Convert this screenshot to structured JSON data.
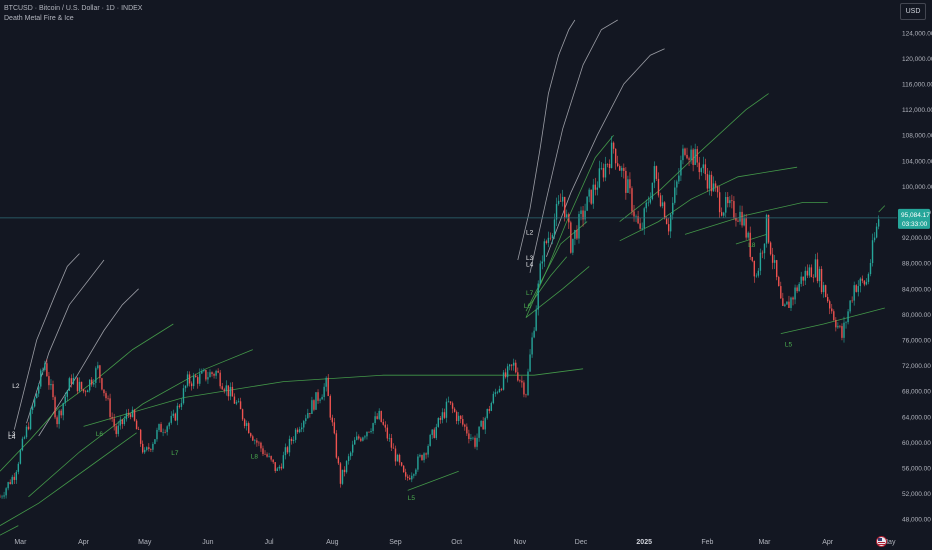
{
  "header": {
    "symbol_line": "BTCUSD · Bitcoin / U.S. Dollar · 1D · INDEX",
    "indicator_name": "Death Metal Fire & Ice"
  },
  "currency": "USD",
  "colors": {
    "background": "#131722",
    "up": "#26a69a",
    "down": "#ef5350",
    "axis_text": "#b2b5be",
    "green_line": "#4caf50",
    "white_line": "#c8cad0",
    "price_line": "#2e6b77",
    "price_badge": "#26a69a"
  },
  "chart_data": {
    "type": "candlestick",
    "title": "BTCUSD · Bitcoin / U.S. Dollar · 1D · INDEX",
    "interval": "1D",
    "x_range": [
      "2024-02-20",
      "2025-05-05"
    ],
    "ylim": [
      46000,
      126000
    ],
    "y_ticks": [
      "48,000.00",
      "52,000.00",
      "56,000.00",
      "60,000.00",
      "64,000.00",
      "68,000.00",
      "72,000.00",
      "76,000.00",
      "80,000.00",
      "84,000.00",
      "88,000.00",
      "92,000.00",
      "96,000.00",
      "100,000.00",
      "104,000.00",
      "108,000.00",
      "112,000.00",
      "116,000.00",
      "120,000.00",
      "124,000.00"
    ],
    "y_tick_values": [
      48000,
      52000,
      56000,
      60000,
      64000,
      68000,
      72000,
      76000,
      80000,
      84000,
      88000,
      92000,
      96000,
      100000,
      104000,
      108000,
      112000,
      116000,
      120000,
      124000
    ],
    "x_ticks": [
      {
        "label": "Mar",
        "date": "2024-03-01",
        "bold": false
      },
      {
        "label": "Apr",
        "date": "2024-04-01",
        "bold": false
      },
      {
        "label": "May",
        "date": "2024-05-01",
        "bold": false
      },
      {
        "label": "Jun",
        "date": "2024-06-01",
        "bold": false
      },
      {
        "label": "Jul",
        "date": "2024-07-01",
        "bold": false
      },
      {
        "label": "Aug",
        "date": "2024-08-01",
        "bold": false
      },
      {
        "label": "Sep",
        "date": "2024-09-01",
        "bold": false
      },
      {
        "label": "Oct",
        "date": "2024-10-01",
        "bold": false
      },
      {
        "label": "Nov",
        "date": "2024-11-01",
        "bold": false
      },
      {
        "label": "Dec",
        "date": "2024-12-01",
        "bold": false
      },
      {
        "label": "2025",
        "date": "2025-01-01",
        "bold": true
      },
      {
        "label": "Feb",
        "date": "2025-02-01",
        "bold": false
      },
      {
        "label": "Mar",
        "date": "2025-03-01",
        "bold": false
      },
      {
        "label": "Apr",
        "date": "2025-04-01",
        "bold": false
      },
      {
        "label": "May",
        "date": "2025-05-01",
        "bold": false
      }
    ],
    "price_path": [
      [
        "2024-02-20",
        51500
      ],
      [
        "2024-02-27",
        55000
      ],
      [
        "2024-03-05",
        63000
      ],
      [
        "2024-03-13",
        72500
      ],
      [
        "2024-03-19",
        63500
      ],
      [
        "2024-03-26",
        70000
      ],
      [
        "2024-04-01",
        68000
      ],
      [
        "2024-04-08",
        71500
      ],
      [
        "2024-04-17",
        61500
      ],
      [
        "2024-04-24",
        65000
      ],
      [
        "2024-05-01",
        58000
      ],
      [
        "2024-05-08",
        62000
      ],
      [
        "2024-05-15",
        63500
      ],
      [
        "2024-05-22",
        69500
      ],
      [
        "2024-06-05",
        71000
      ],
      [
        "2024-06-15",
        66000
      ],
      [
        "2024-06-24",
        60500
      ],
      [
        "2024-07-05",
        55500
      ],
      [
        "2024-07-15",
        62500
      ],
      [
        "2024-07-29",
        69000
      ],
      [
        "2024-08-05",
        54000
      ],
      [
        "2024-08-12",
        60000
      ],
      [
        "2024-08-24",
        64000
      ],
      [
        "2024-09-06",
        54000
      ],
      [
        "2024-09-15",
        58500
      ],
      [
        "2024-09-27",
        66000
      ],
      [
        "2024-10-10",
        60000
      ],
      [
        "2024-10-21",
        68500
      ],
      [
        "2024-10-29",
        72000
      ],
      [
        "2024-11-04",
        68000
      ],
      [
        "2024-11-12",
        89500
      ],
      [
        "2024-11-22",
        98500
      ],
      [
        "2024-11-26",
        91000
      ],
      [
        "2024-12-05",
        98000
      ],
      [
        "2024-12-17",
        106000
      ],
      [
        "2024-12-25",
        98500
      ],
      [
        "2024-12-30",
        92500
      ],
      [
        "2025-01-06",
        102000
      ],
      [
        "2025-01-13",
        94000
      ],
      [
        "2025-01-21",
        106500
      ],
      [
        "2025-01-31",
        102000
      ],
      [
        "2025-02-08",
        97000
      ],
      [
        "2025-02-18",
        95500
      ],
      [
        "2025-02-25",
        86000
      ],
      [
        "2025-03-02",
        94000
      ],
      [
        "2025-03-10",
        80000
      ],
      [
        "2025-03-20",
        86000
      ],
      [
        "2025-03-26",
        87500
      ],
      [
        "2025-04-08",
        76500
      ],
      [
        "2025-04-14",
        84500
      ],
      [
        "2025-04-20",
        85000
      ],
      [
        "2025-04-26",
        95084
      ]
    ],
    "last_price": "95,084.17",
    "countdown": "03:33:00",
    "series": [
      {
        "color": "white",
        "points": [
          [
            "2024-02-27",
            62000
          ],
          [
            "2024-03-09",
            76000
          ],
          [
            "2024-03-18",
            83000
          ],
          [
            "2024-03-24",
            87500
          ],
          [
            "2024-03-30",
            89500
          ]
        ]
      },
      {
        "color": "white",
        "points": [
          [
            "2024-03-04",
            63000
          ],
          [
            "2024-03-15",
            74000
          ],
          [
            "2024-03-25",
            81500
          ],
          [
            "2024-04-05",
            86000
          ],
          [
            "2024-04-11",
            88500
          ]
        ]
      },
      {
        "color": "white",
        "points": [
          [
            "2024-03-10",
            61000
          ],
          [
            "2024-03-28",
            70000
          ],
          [
            "2024-04-11",
            77500
          ],
          [
            "2024-04-20",
            81500
          ],
          [
            "2024-04-28",
            84000
          ]
        ]
      },
      {
        "color": "white",
        "points": [
          [
            "2024-10-31",
            88500
          ],
          [
            "2024-11-06",
            96500
          ],
          [
            "2024-11-11",
            106000
          ],
          [
            "2024-11-15",
            114500
          ],
          [
            "2024-11-20",
            120500
          ],
          [
            "2024-11-25",
            124500
          ],
          [
            "2024-11-28",
            126000
          ]
        ]
      },
      {
        "color": "white",
        "points": [
          [
            "2024-11-06",
            86500
          ],
          [
            "2024-11-14",
            98000
          ],
          [
            "2024-11-22",
            109000
          ],
          [
            "2024-12-02",
            119000
          ],
          [
            "2024-12-11",
            124500
          ],
          [
            "2024-12-19",
            126000
          ]
        ]
      },
      {
        "color": "white",
        "points": [
          [
            "2024-11-14",
            89000
          ],
          [
            "2024-11-26",
            99000
          ],
          [
            "2024-12-09",
            108000
          ],
          [
            "2024-12-22",
            116000
          ],
          [
            "2025-01-04",
            120500
          ],
          [
            "2025-01-11",
            121500
          ]
        ]
      },
      {
        "color": "green",
        "points": [
          [
            "2024-02-20",
            55500
          ],
          [
            "2024-03-06",
            60500
          ],
          [
            "2024-03-20",
            65500
          ],
          [
            "2024-04-06",
            69500
          ],
          [
            "2024-04-25",
            74500
          ],
          [
            "2024-05-15",
            78500
          ]
        ]
      },
      {
        "color": "green",
        "points": [
          [
            "2024-03-05",
            51500
          ],
          [
            "2024-03-30",
            58500
          ],
          [
            "2024-04-30",
            66000
          ],
          [
            "2024-05-31",
            71500
          ],
          [
            "2024-06-23",
            74500
          ]
        ]
      },
      {
        "color": "green",
        "points": [
          [
            "2024-02-20",
            47000
          ],
          [
            "2024-03-10",
            50500
          ],
          [
            "2024-04-03",
            56000
          ],
          [
            "2024-04-27",
            61500
          ]
        ]
      },
      {
        "color": "green",
        "points": [
          [
            "2024-02-20",
            45500
          ],
          [
            "2024-02-29",
            47000
          ]
        ]
      },
      {
        "color": "green",
        "points": [
          [
            "2024-04-01",
            62500
          ],
          [
            "2024-05-20",
            67000
          ],
          [
            "2024-07-08",
            69500
          ],
          [
            "2024-08-26",
            70500
          ],
          [
            "2024-10-10",
            70500
          ],
          [
            "2024-11-08",
            70500
          ],
          [
            "2024-12-02",
            71500
          ]
        ]
      },
      {
        "color": "green",
        "points": [
          [
            "2024-09-07",
            52500
          ],
          [
            "2024-10-02",
            55500
          ]
        ]
      },
      {
        "color": "green",
        "points": [
          [
            "2024-11-04",
            79500
          ],
          [
            "2024-11-15",
            87500
          ],
          [
            "2024-11-24",
            94500
          ],
          [
            "2024-12-08",
            104500
          ],
          [
            "2024-12-17",
            108000
          ]
        ]
      },
      {
        "color": "green",
        "points": [
          [
            "2024-11-04",
            80500
          ],
          [
            "2024-11-12",
            85500
          ],
          [
            "2024-11-21",
            91000
          ],
          [
            "2024-12-04",
            94500
          ]
        ]
      },
      {
        "color": "green",
        "points": [
          [
            "2024-11-04",
            79500
          ],
          [
            "2024-11-22",
            84000
          ],
          [
            "2024-12-05",
            87500
          ]
        ]
      },
      {
        "color": "green",
        "points": [
          [
            "2024-11-06",
            81500
          ],
          [
            "2024-11-16",
            86000
          ],
          [
            "2024-11-24",
            89000
          ]
        ]
      },
      {
        "color": "green",
        "points": [
          [
            "2024-12-20",
            94500
          ],
          [
            "2025-01-09",
            99500
          ],
          [
            "2025-01-27",
            105000
          ],
          [
            "2025-02-20",
            112000
          ],
          [
            "2025-03-03",
            114500
          ]
        ]
      },
      {
        "color": "green",
        "points": [
          [
            "2024-12-20",
            91500
          ],
          [
            "2025-01-08",
            94500
          ],
          [
            "2025-01-24",
            98000
          ],
          [
            "2025-02-16",
            101500
          ],
          [
            "2025-03-17",
            103000
          ]
        ]
      },
      {
        "color": "green",
        "points": [
          [
            "2025-01-21",
            92500
          ],
          [
            "2025-02-20",
            95500
          ],
          [
            "2025-03-20",
            97500
          ],
          [
            "2025-04-01",
            97500
          ]
        ]
      },
      {
        "color": "green",
        "points": [
          [
            "2025-02-15",
            91000
          ],
          [
            "2025-03-02",
            92500
          ]
        ]
      },
      {
        "color": "green",
        "points": [
          [
            "2025-03-09",
            77000
          ],
          [
            "2025-03-30",
            78500
          ],
          [
            "2025-04-29",
            81000
          ]
        ]
      },
      {
        "color": "green",
        "points": [
          [
            "2025-04-26",
            96000
          ],
          [
            "2025-04-29",
            97000
          ]
        ]
      }
    ],
    "annotations": [
      {
        "text": "L2",
        "date": "2024-02-26",
        "value": 68500,
        "color": "white"
      },
      {
        "text": "L3",
        "date": "2024-02-24",
        "value": 61000,
        "color": "white"
      },
      {
        "text": "L4",
        "date": "2024-02-24",
        "value": 60500,
        "color": "white"
      },
      {
        "text": "L6",
        "date": "2024-04-07",
        "value": 61000,
        "color": "green"
      },
      {
        "text": "L7",
        "date": "2024-05-14",
        "value": 58000,
        "color": "green"
      },
      {
        "text": "L8",
        "date": "2024-06-22",
        "value": 57500,
        "color": "green"
      },
      {
        "text": "L5",
        "date": "2024-09-07",
        "value": 51000,
        "color": "green"
      },
      {
        "text": "L2",
        "date": "2024-11-04",
        "value": 92500,
        "color": "white"
      },
      {
        "text": "L3",
        "date": "2024-11-04",
        "value": 88500,
        "color": "white"
      },
      {
        "text": "L4",
        "date": "2024-11-04",
        "value": 87500,
        "color": "white"
      },
      {
        "text": "L7",
        "date": "2024-11-04",
        "value": 83000,
        "color": "green"
      },
      {
        "text": "L6",
        "date": "2024-11-03",
        "value": 81000,
        "color": "green"
      },
      {
        "text": "L8",
        "date": "2025-02-21",
        "value": 90500,
        "color": "green"
      },
      {
        "text": "L5",
        "date": "2025-03-11",
        "value": 75000,
        "color": "green"
      }
    ]
  }
}
